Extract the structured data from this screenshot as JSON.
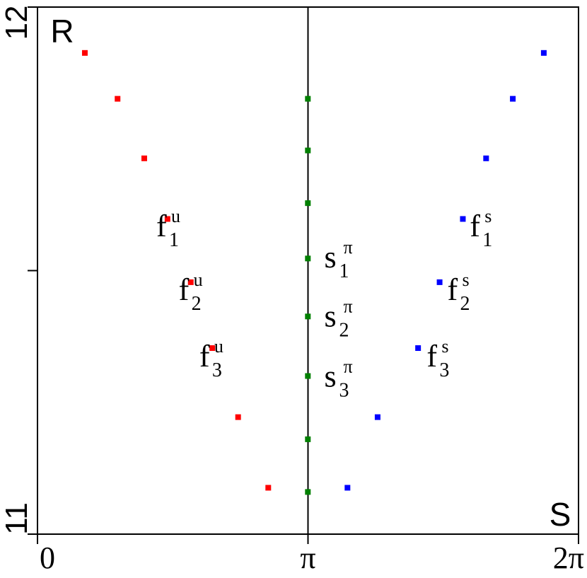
{
  "chart_data": {
    "type": "scatter",
    "xlabel": "S",
    "ylabel": "R",
    "xlim": [
      0,
      6.2832
    ],
    "ylim": [
      11,
      12
    ],
    "x_ticks": [
      {
        "value": 0,
        "label": "0"
      },
      {
        "value": 3.1416,
        "label": "π"
      },
      {
        "value": 6.2832,
        "label": "2π"
      }
    ],
    "y_ticks": [
      {
        "value": 11,
        "label": "11"
      },
      {
        "value": 11.5,
        "label": ""
      },
      {
        "value": 12,
        "label": "12"
      }
    ],
    "vline_x": 3.1416,
    "series": [
      {
        "color": "#ff0000",
        "points": [
          [
            0.55,
            11.913
          ],
          [
            0.93,
            11.826
          ],
          [
            1.24,
            11.713
          ],
          [
            1.51,
            11.598
          ],
          [
            1.78,
            11.478
          ],
          [
            2.03,
            11.353
          ],
          [
            2.33,
            11.222
          ],
          [
            2.68,
            11.088
          ]
        ]
      },
      {
        "color": "#008000",
        "points": [
          [
            3.14,
            11.826
          ],
          [
            3.14,
            11.728
          ],
          [
            3.14,
            11.628
          ],
          [
            3.14,
            11.523
          ],
          [
            3.14,
            11.413
          ],
          [
            3.14,
            11.3
          ],
          [
            3.14,
            11.18
          ],
          [
            3.14,
            11.08
          ]
        ]
      },
      {
        "color": "#0000ff",
        "points": [
          [
            5.88,
            11.913
          ],
          [
            5.52,
            11.826
          ],
          [
            5.21,
            11.713
          ],
          [
            4.94,
            11.598
          ],
          [
            4.67,
            11.478
          ],
          [
            4.42,
            11.353
          ],
          [
            3.95,
            11.222
          ],
          [
            3.6,
            11.088
          ]
        ]
      }
    ],
    "annotations": [
      {
        "base": "f",
        "sub": "1",
        "sup": "u",
        "x": 1.38,
        "y": 11.565
      },
      {
        "base": "f",
        "sub": "2",
        "sup": "u",
        "x": 1.64,
        "y": 11.444
      },
      {
        "base": "f",
        "sub": "3",
        "sup": "u",
        "x": 1.88,
        "y": 11.318
      },
      {
        "base": "s",
        "sub": "1",
        "sup": "π",
        "x": 3.33,
        "y": 11.506
      },
      {
        "base": "s",
        "sub": "2",
        "sup": "π",
        "x": 3.33,
        "y": 11.394
      },
      {
        "base": "s",
        "sub": "3",
        "sup": "π",
        "x": 3.33,
        "y": 11.28
      },
      {
        "base": "f",
        "sub": "1",
        "sup": "s",
        "x": 5.02,
        "y": 11.565
      },
      {
        "base": "f",
        "sub": "2",
        "sup": "s",
        "x": 4.76,
        "y": 11.444
      },
      {
        "base": "f",
        "sub": "3",
        "sup": "s",
        "x": 4.52,
        "y": 11.318
      }
    ]
  }
}
